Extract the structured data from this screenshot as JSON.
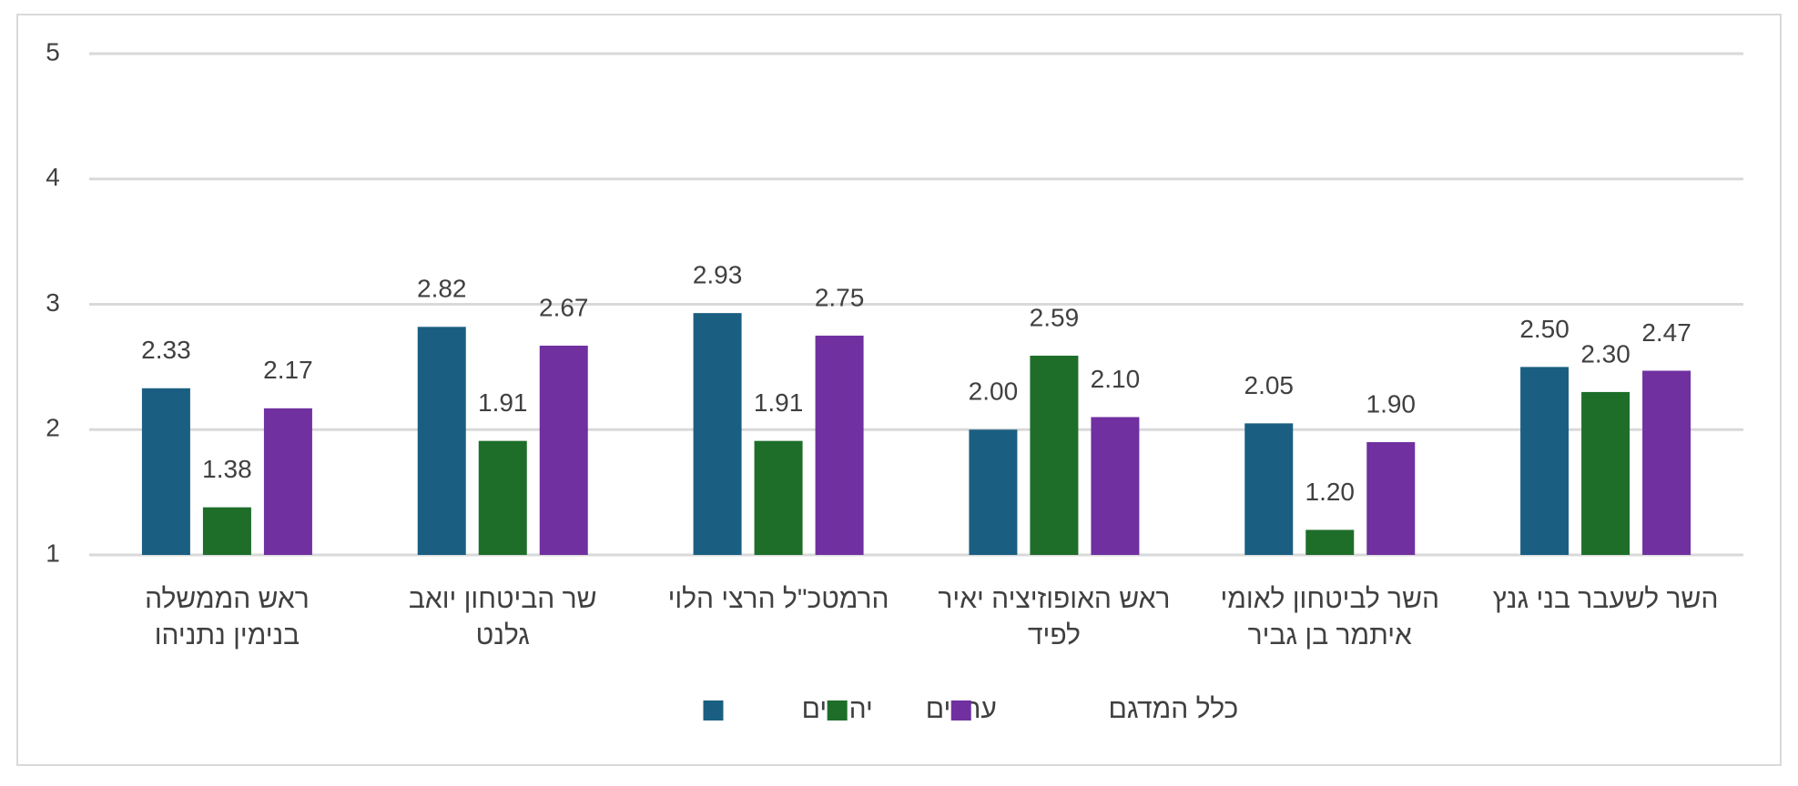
{
  "chart_data": {
    "type": "bar",
    "categories": [
      [
        "ראש הממשלה",
        "בנימין נתניהו"
      ],
      [
        "שר הביטחון יואב",
        "גלנט"
      ],
      [
        "הרמטכ\"ל הרצי הלוי"
      ],
      [
        "ראש האופוזיציה יאיר",
        "לפיד"
      ],
      [
        "השר לביטחון לאומי",
        "איתמר בן גביר"
      ],
      [
        "השר לשעבר בני גנץ"
      ]
    ],
    "series": [
      {
        "name": "יהודים",
        "color": "#1a5f82",
        "values": [
          2.33,
          2.82,
          2.93,
          2,
          2.05,
          2.5
        ],
        "value_labels": [
          "2.33",
          "2.82",
          "2.93",
          "2.00",
          "2.05",
          "2.50"
        ]
      },
      {
        "name": "ערבים",
        "color": "#1e6e2a",
        "values": [
          1.38,
          1.91,
          1.91,
          2.59,
          1.2,
          2.3
        ],
        "value_labels": [
          "1.38",
          "1.91",
          "1.91",
          "2.59",
          "1.20",
          "2.30"
        ]
      },
      {
        "name": "כלל המדגם",
        "color": "#7030a0",
        "values": [
          2.17,
          2.67,
          2.75,
          2.1,
          1.9,
          2.47
        ],
        "value_labels": [
          "2.17",
          "2.67",
          "2.75",
          "2.10",
          "1.90",
          "2.47"
        ]
      }
    ],
    "ylim": [
      1,
      5
    ],
    "yticks": [
      1,
      2,
      3,
      4,
      5
    ],
    "grid": true,
    "legend": "bottom"
  }
}
